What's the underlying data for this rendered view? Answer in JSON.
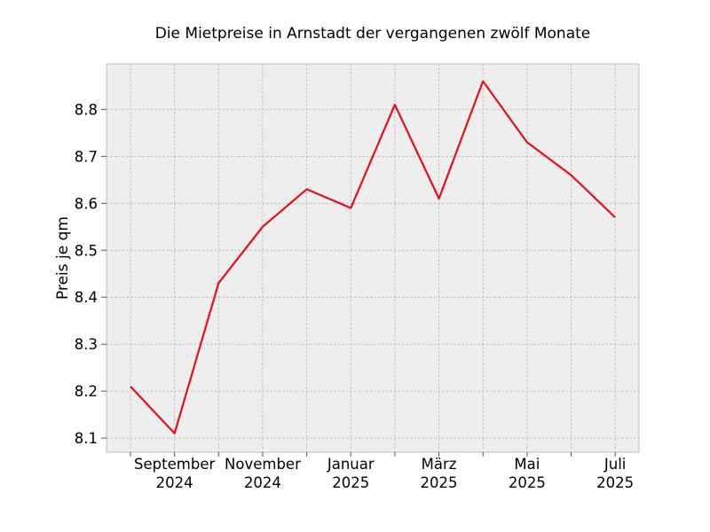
{
  "chart_data": {
    "type": "line",
    "title": "Die Mietpreise in Arnstadt der vergangenen zwölf Monate",
    "xlabel": "",
    "ylabel": "Preis je qm",
    "x": [
      "2024-08",
      "2024-09",
      "2024-10",
      "2024-11",
      "2024-12",
      "2025-01",
      "2025-02",
      "2025-03",
      "2025-04",
      "2025-05",
      "2025-06",
      "2025-07"
    ],
    "series": [
      {
        "values": [
          8.21,
          8.11,
          8.43,
          8.55,
          8.63,
          8.59,
          8.81,
          8.61,
          8.86,
          8.73,
          8.66,
          8.57
        ]
      }
    ],
    "ylim": [
      8.07,
      8.897
    ],
    "yticks": [
      8.1,
      8.2,
      8.3,
      8.4,
      8.5,
      8.6,
      8.7,
      8.8
    ],
    "yticklabels": [
      "8.1",
      "8.2",
      "8.3",
      "8.4",
      "8.5",
      "8.6",
      "8.7",
      "8.8"
    ],
    "xticklabels": [
      {
        "index": 1,
        "line1": "September",
        "line2": "2024"
      },
      {
        "index": 3,
        "line1": "November",
        "line2": "2024"
      },
      {
        "index": 5,
        "line1": "Januar",
        "line2": "2025"
      },
      {
        "index": 7,
        "line1": "März",
        "line2": "2025"
      },
      {
        "index": 9,
        "line1": "Mai",
        "line2": "2025"
      },
      {
        "index": 11,
        "line1": "Juli",
        "line2": "2025"
      }
    ],
    "grid": true,
    "colors": {
      "line": "#e3101c",
      "plot_background": "#eeeeee",
      "grid": "#b2b2b2",
      "frame": "#bcbcbc"
    }
  }
}
